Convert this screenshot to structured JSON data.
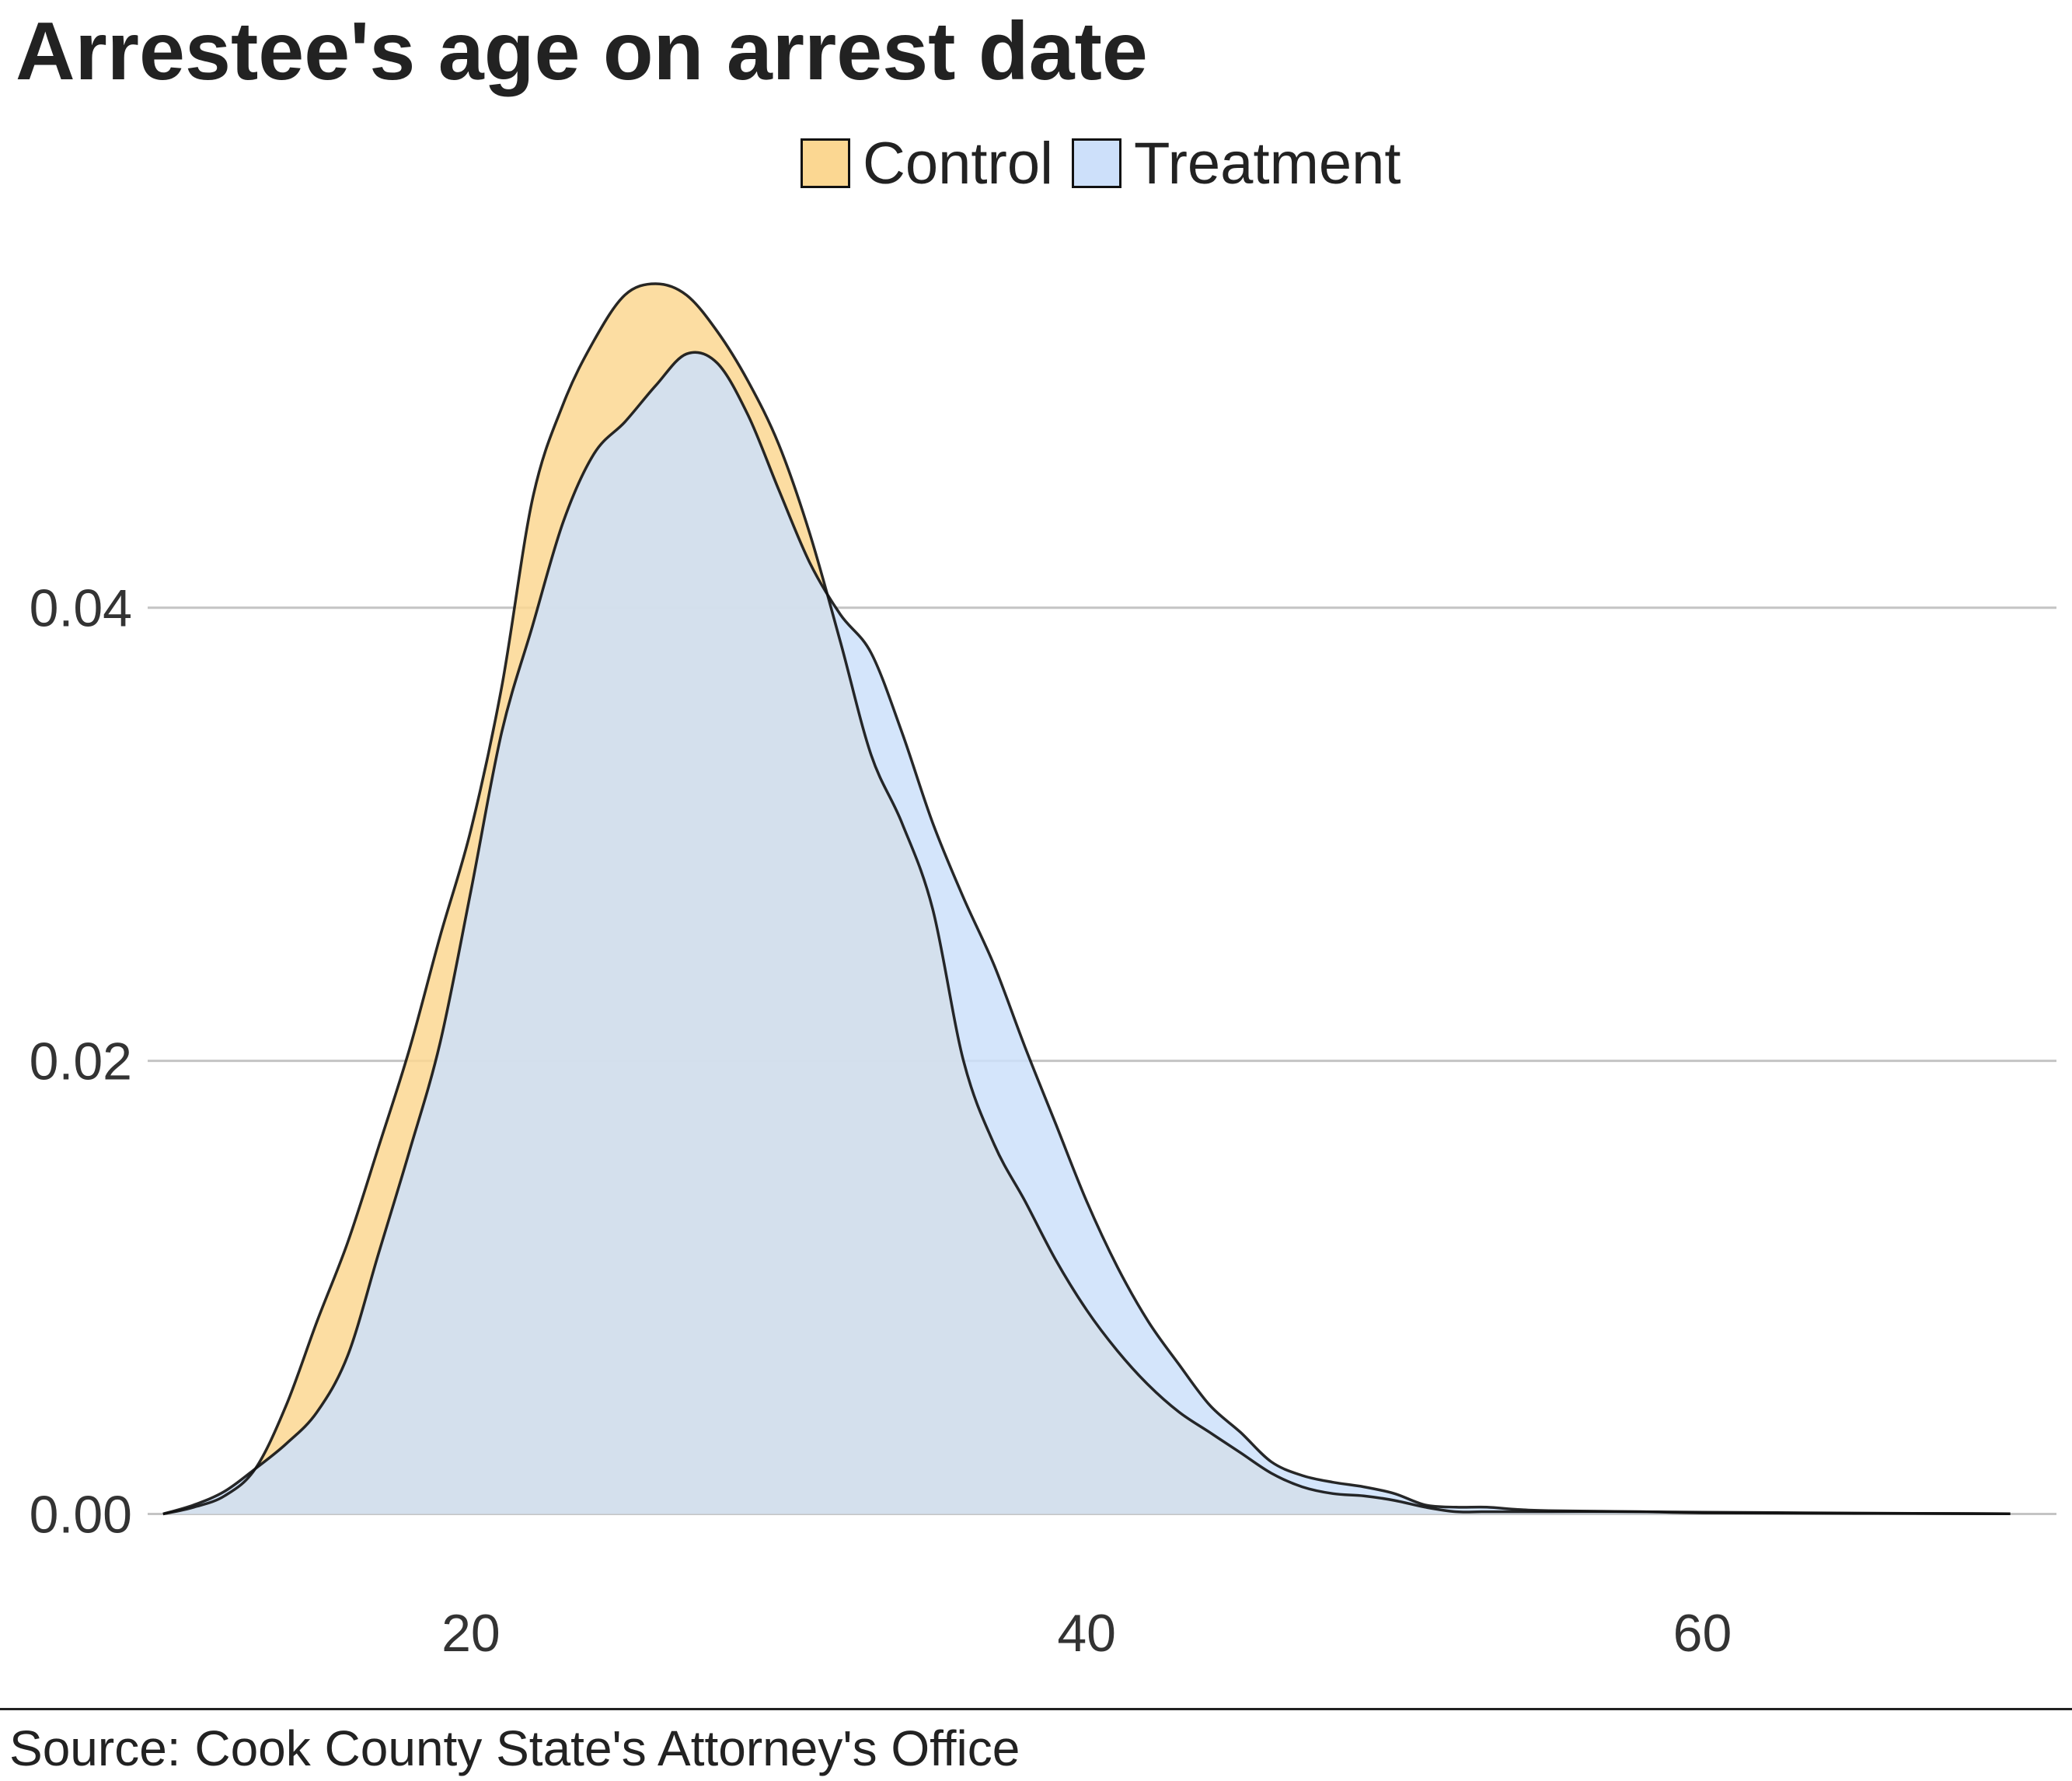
{
  "chart_data": {
    "type": "area",
    "title": "Arrestee's age on arrest date",
    "xlabel": "",
    "ylabel": "",
    "xlim": [
      9.5,
      71.5
    ],
    "ylim": [
      -0.0018,
      0.0555
    ],
    "x_ticks": [
      20,
      40,
      60
    ],
    "x_tick_labels": [
      "20",
      "40",
      "60"
    ],
    "y_ticks": [
      0,
      0.02,
      0.04
    ],
    "y_tick_labels": [
      "0.00",
      "0.02",
      "0.04"
    ],
    "grid": {
      "horizontal": true,
      "vertical": false
    },
    "legend": {
      "position": "top"
    },
    "series": [
      {
        "name": "Control",
        "color": "#fbd792",
        "points": [
          [
            10,
            0
          ],
          [
            11,
            0.0003
          ],
          [
            12,
            0.0008
          ],
          [
            13,
            0.002
          ],
          [
            14,
            0.0048
          ],
          [
            15,
            0.0085
          ],
          [
            16,
            0.012
          ],
          [
            17,
            0.0162
          ],
          [
            18,
            0.0205
          ],
          [
            19,
            0.0255
          ],
          [
            20,
            0.0302
          ],
          [
            21,
            0.0365
          ],
          [
            22,
            0.0448
          ],
          [
            23,
            0.049
          ],
          [
            24,
            0.0518
          ],
          [
            25,
            0.0538
          ],
          [
            26,
            0.0543
          ],
          [
            27,
            0.0538
          ],
          [
            28,
            0.0522
          ],
          [
            29,
            0.05
          ],
          [
            30,
            0.0472
          ],
          [
            31,
            0.0433
          ],
          [
            32,
            0.0385
          ],
          [
            33,
            0.0335
          ],
          [
            34,
            0.0305
          ],
          [
            35,
            0.0267
          ],
          [
            36,
            0.02
          ],
          [
            37,
            0.0163
          ],
          [
            38,
            0.0138
          ],
          [
            39,
            0.0112
          ],
          [
            40,
            0.009
          ],
          [
            41,
            0.0072
          ],
          [
            42,
            0.0057
          ],
          [
            43,
            0.0045
          ],
          [
            44,
            0.0036
          ],
          [
            45,
            0.0027
          ],
          [
            46,
            0.0018
          ],
          [
            47,
            0.0012
          ],
          [
            48,
            0.0009
          ],
          [
            49,
            0.0008
          ],
          [
            50,
            0.0006
          ],
          [
            51,
            0.0003
          ],
          [
            52,
            0.0001
          ],
          [
            53,
            0.0001
          ],
          [
            55,
            0.0001
          ],
          [
            58,
            0.0001
          ],
          [
            60,
            5e-05
          ],
          [
            65,
            3e-05
          ],
          [
            70,
            1e-05
          ]
        ]
      },
      {
        "name": "Treatment",
        "color": "#cde0fa",
        "points": [
          [
            10,
            0
          ],
          [
            11,
            0.0004
          ],
          [
            12,
            0.001
          ],
          [
            13,
            0.002
          ],
          [
            14,
            0.0031
          ],
          [
            15,
            0.0045
          ],
          [
            16,
            0.007
          ],
          [
            17,
            0.0115
          ],
          [
            18,
            0.016
          ],
          [
            19,
            0.0208
          ],
          [
            20,
            0.0275
          ],
          [
            21,
            0.0345
          ],
          [
            22,
            0.0392
          ],
          [
            23,
            0.0438
          ],
          [
            24,
            0.0468
          ],
          [
            25,
            0.0482
          ],
          [
            26,
            0.0498
          ],
          [
            27,
            0.0512
          ],
          [
            28,
            0.0508
          ],
          [
            29,
            0.0485
          ],
          [
            30,
            0.0452
          ],
          [
            31,
            0.042
          ],
          [
            32,
            0.0397
          ],
          [
            33,
            0.038
          ],
          [
            34,
            0.0345
          ],
          [
            35,
            0.0305
          ],
          [
            36,
            0.0272
          ],
          [
            37,
            0.0242
          ],
          [
            38,
            0.0206
          ],
          [
            39,
            0.0172
          ],
          [
            40,
            0.0138
          ],
          [
            41,
            0.0109
          ],
          [
            42,
            0.0085
          ],
          [
            43,
            0.0066
          ],
          [
            44,
            0.0048
          ],
          [
            45,
            0.0036
          ],
          [
            46,
            0.0023
          ],
          [
            47,
            0.0017
          ],
          [
            48,
            0.0014
          ],
          [
            49,
            0.0012
          ],
          [
            50,
            0.0009
          ],
          [
            51,
            0.0004
          ],
          [
            52,
            0.0003
          ],
          [
            53,
            0.0003
          ],
          [
            54,
            0.0002
          ],
          [
            55,
            0.00015
          ],
          [
            58,
            0.0001
          ],
          [
            60,
            8e-05
          ],
          [
            65,
            4e-05
          ],
          [
            70,
            1e-05
          ]
        ]
      }
    ]
  },
  "source": "Source: Cook County State's Attorney's Office"
}
